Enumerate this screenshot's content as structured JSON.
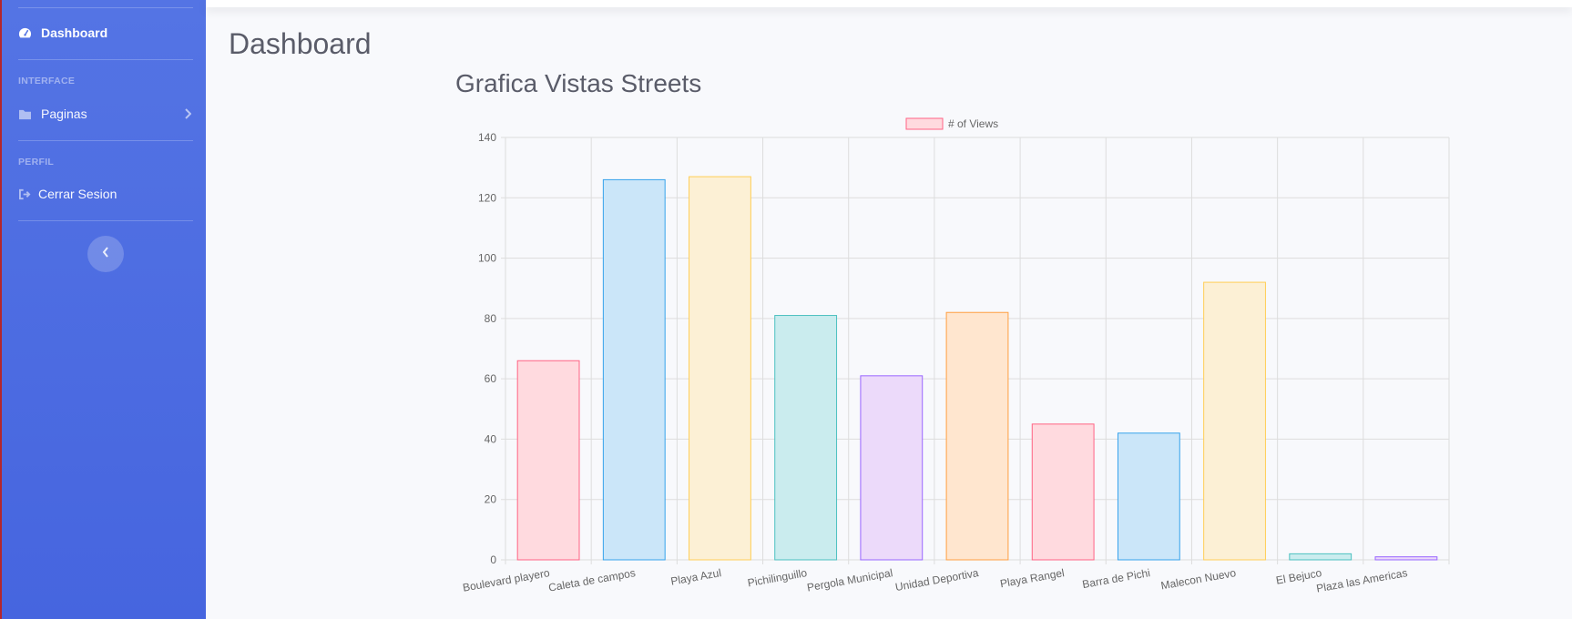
{
  "sidebar": {
    "dashboard_label": "Dashboard",
    "heading_interface": "INTERFACE",
    "paginas_label": "Paginas",
    "heading_perfil": "PERFIL",
    "logout_label": "Cerrar Sesion"
  },
  "page": {
    "title": "Dashboard",
    "chart_heading": "Grafica Vistas Streets"
  },
  "chart_data": {
    "type": "bar",
    "title": "Grafica Vistas Streets",
    "legend": "# of Views",
    "legend_position": "top-center",
    "categories": [
      "Boulevard playero",
      "Caleta de campos",
      "Playa Azul",
      "Pichilinguillo",
      "Pergola Municipal",
      "Unidad Deportiva",
      "Playa Rangel",
      "Barra de Pichi",
      "Malecon Nuevo",
      "El Bejuco",
      "Plaza las Americas"
    ],
    "values": [
      66,
      126,
      127,
      81,
      61,
      82,
      45,
      42,
      92,
      2,
      1
    ],
    "ylim": [
      0,
      140
    ],
    "yticks": [
      0,
      20,
      40,
      60,
      80,
      100,
      120,
      140
    ],
    "grid": true,
    "colors": [
      {
        "fill": "#ffdadf",
        "stroke": "#ff6384"
      },
      {
        "fill": "#cbe6f9",
        "stroke": "#36a2eb"
      },
      {
        "fill": "#fcf0d5",
        "stroke": "#ffce56"
      },
      {
        "fill": "#caecee",
        "stroke": "#4bc0c0"
      },
      {
        "fill": "#ecdafa",
        "stroke": "#9966ff"
      },
      {
        "fill": "#ffe6cf",
        "stroke": "#ff9f40"
      }
    ]
  }
}
